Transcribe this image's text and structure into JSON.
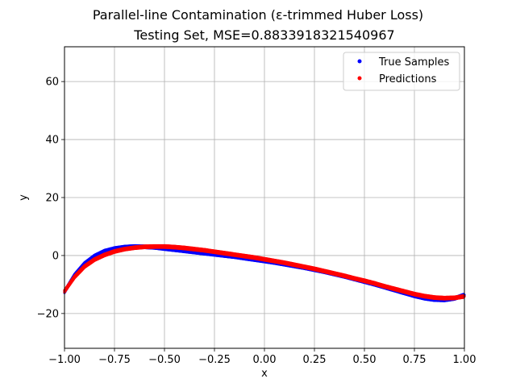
{
  "chart_data": {
    "type": "scatter",
    "title": "Parallel-line Contamination (ε-trimmed Huber Loss)",
    "subtitle": "Testing Set, MSE=0.8833918321540967",
    "xlabel": "x",
    "ylabel": "y",
    "xlim": [
      -1.0,
      1.0
    ],
    "ylim": [
      -32,
      72
    ],
    "x_ticks": [
      -1.0,
      -0.75,
      -0.5,
      -0.25,
      0.0,
      0.25,
      0.5,
      0.75,
      1.0
    ],
    "x_tick_labels": [
      "−1.00",
      "−0.75",
      "−0.50",
      "−0.25",
      "0.00",
      "0.25",
      "0.50",
      "0.75",
      "1.00"
    ],
    "y_ticks": [
      -20,
      0,
      20,
      40,
      60
    ],
    "y_tick_labels": [
      "−20",
      "0",
      "20",
      "40",
      "60"
    ],
    "grid": true,
    "legend_position": "top-right",
    "series": [
      {
        "name": "True Samples",
        "color": "#0000ff",
        "x": [
          -1.0,
          -0.95,
          -0.9,
          -0.85,
          -0.8,
          -0.75,
          -0.7,
          -0.65,
          -0.6,
          -0.55,
          -0.5,
          -0.45,
          -0.4,
          -0.35,
          -0.3,
          -0.25,
          -0.2,
          -0.15,
          -0.1,
          -0.05,
          0.0,
          0.05,
          0.1,
          0.15,
          0.2,
          0.25,
          0.3,
          0.35,
          0.4,
          0.45,
          0.5,
          0.55,
          0.6,
          0.65,
          0.7,
          0.75,
          0.8,
          0.85,
          0.9,
          0.95,
          1.0
        ],
        "y": [
          -12.5,
          -6.8,
          -2.8,
          -0.2,
          1.5,
          2.4,
          2.9,
          3.1,
          3.0,
          2.8,
          2.4,
          2.0,
          1.6,
          1.2,
          0.8,
          0.4,
          0.0,
          -0.4,
          -0.9,
          -1.4,
          -1.9,
          -2.4,
          -3.0,
          -3.6,
          -4.2,
          -4.9,
          -5.6,
          -6.4,
          -7.2,
          -8.1,
          -9.0,
          -9.9,
          -10.9,
          -11.9,
          -12.9,
          -13.9,
          -14.7,
          -15.2,
          -15.3,
          -14.8,
          -13.6
        ]
      },
      {
        "name": "Predictions",
        "color": "#ff0000",
        "x": [
          -1.0,
          -0.95,
          -0.9,
          -0.85,
          -0.8,
          -0.75,
          -0.7,
          -0.65,
          -0.6,
          -0.55,
          -0.5,
          -0.45,
          -0.4,
          -0.35,
          -0.3,
          -0.25,
          -0.2,
          -0.15,
          -0.1,
          -0.05,
          0.0,
          0.05,
          0.1,
          0.15,
          0.2,
          0.25,
          0.3,
          0.35,
          0.4,
          0.45,
          0.5,
          0.55,
          0.6,
          0.65,
          0.7,
          0.75,
          0.8,
          0.85,
          0.9,
          0.95,
          1.0
        ],
        "y": [
          -12.3,
          -7.4,
          -3.8,
          -1.4,
          0.2,
          1.4,
          2.2,
          2.7,
          3.0,
          3.1,
          3.1,
          2.9,
          2.6,
          2.2,
          1.8,
          1.3,
          0.8,
          0.3,
          -0.2,
          -0.7,
          -1.3,
          -1.9,
          -2.5,
          -3.2,
          -3.9,
          -4.6,
          -5.4,
          -6.2,
          -7.0,
          -7.9,
          -8.7,
          -9.6,
          -10.6,
          -11.5,
          -12.4,
          -13.3,
          -14.0,
          -14.5,
          -14.7,
          -14.6,
          -14.1
        ]
      }
    ]
  }
}
